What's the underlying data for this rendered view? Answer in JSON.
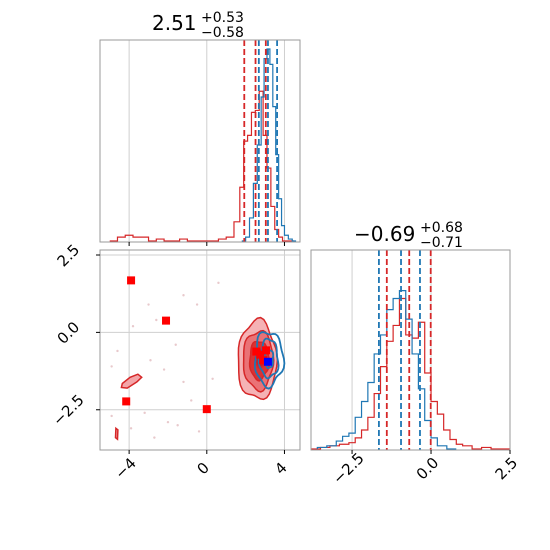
{
  "colors": {
    "red": "#d62728",
    "red_fill": "#e8666b",
    "red_fill_light": "#f3a5a8",
    "blue": "#1f77b4",
    "grid": "#cfcfcf",
    "marker_red": "#ff0000",
    "marker_blue": "#0000ff"
  },
  "chart_data": [
    {
      "panel": "top-left",
      "type": "histogram",
      "title_value": "2.51",
      "title_sup": "+0.53",
      "title_sub": "−0.58",
      "xlim": [
        -5.5,
        4.8
      ],
      "x_ticks": [
        -4,
        0,
        4
      ],
      "grid": true,
      "quantile_lines": {
        "red": [
          1.93,
          2.51,
          3.04
        ],
        "blue": [
          2.68,
          3.15,
          3.62
        ]
      },
      "series": [
        {
          "color": "red",
          "bin_edges": [
            -5.0,
            -4.6,
            -4.2,
            -3.8,
            -3.4,
            -3.0,
            -2.6,
            -2.2,
            -1.8,
            -1.4,
            -1.0,
            -0.6,
            -0.2,
            0.2,
            0.6,
            1.0,
            1.4,
            1.7,
            1.9,
            2.1,
            2.3,
            2.5,
            2.7,
            2.9,
            3.1,
            3.3,
            3.5,
            3.7,
            3.9,
            4.1,
            4.3,
            4.5
          ],
          "values": [
            0.0,
            0.02,
            0.03,
            0.02,
            0.02,
            0.0,
            0.01,
            0.0,
            0.0,
            0.01,
            0.0,
            0.0,
            0.0,
            0.0,
            0.01,
            0.02,
            0.1,
            0.28,
            0.52,
            0.55,
            0.67,
            0.68,
            0.78,
            0.55,
            0.38,
            0.18,
            0.06,
            0.02,
            0.0,
            0.0,
            0.0
          ]
        },
        {
          "color": "blue",
          "bin_edges": [
            1.8,
            2.0,
            2.2,
            2.4,
            2.6,
            2.8,
            2.95,
            3.1,
            3.25,
            3.4,
            3.55,
            3.7,
            3.85,
            4.0,
            4.2,
            4.4,
            4.6
          ],
          "values": [
            0.0,
            0.02,
            0.12,
            0.3,
            0.5,
            0.75,
            0.95,
            1.0,
            0.92,
            0.7,
            0.45,
            0.22,
            0.08,
            0.03,
            0.01,
            0.0
          ]
        }
      ]
    },
    {
      "panel": "bottom-left",
      "type": "contour",
      "xlim": [
        -5.5,
        4.8
      ],
      "ylim": [
        -3.8,
        2.5
      ],
      "x_ticks": [
        "−4",
        "0",
        "4"
      ],
      "y_ticks": [
        "2.5",
        "0.0",
        "−2.5"
      ],
      "x_tick_values": [
        -4,
        0,
        4
      ],
      "y_tick_values": [
        2.5,
        0.0,
        -2.5
      ],
      "grid": true,
      "red_markers": [
        {
          "x": -3.9,
          "y": 1.68
        },
        {
          "x": -2.1,
          "y": 0.38
        },
        {
          "x": -4.15,
          "y": -2.23
        },
        {
          "x": 0.0,
          "y": -2.48
        },
        {
          "x": 2.55,
          "y": -0.62
        },
        {
          "x": 2.75,
          "y": -0.72
        },
        {
          "x": 3.05,
          "y": -0.58
        },
        {
          "x": 2.9,
          "y": -0.9
        }
      ],
      "blue_markers": [
        {
          "x": 3.15,
          "y": -0.95
        }
      ],
      "red_outliers": [
        {
          "points": [
            [
              -4.35,
              -1.65
            ],
            [
              -3.95,
              -1.45
            ],
            [
              -3.55,
              -1.35
            ],
            [
              -3.35,
              -1.45
            ],
            [
              -3.6,
              -1.6
            ],
            [
              -4.1,
              -1.8
            ],
            [
              -4.4,
              -1.78
            ]
          ]
        },
        {
          "points": [
            [
              -4.68,
              -3.1
            ],
            [
              -4.58,
              -3.15
            ],
            [
              -4.6,
              -3.45
            ],
            [
              -4.7,
              -3.4
            ]
          ]
        }
      ],
      "scatter_faint": [
        [
          -3.0,
          0.9
        ],
        [
          -2.6,
          0.4
        ],
        [
          -3.8,
          0.2
        ],
        [
          -1.6,
          -0.4
        ],
        [
          -2.9,
          -0.9
        ],
        [
          -4.6,
          -0.6
        ],
        [
          -4.9,
          -1.1
        ],
        [
          -2.2,
          -1.2
        ],
        [
          -1.2,
          -1.6
        ],
        [
          -3.2,
          -2.6
        ],
        [
          -2.0,
          -2.9
        ],
        [
          -0.8,
          -2.2
        ],
        [
          -4.9,
          -2.7
        ],
        [
          -3.9,
          -3.1
        ],
        [
          -2.7,
          -3.4
        ],
        [
          -1.5,
          -3.0
        ],
        [
          -1.2,
          1.2
        ],
        [
          0.6,
          1.6
        ],
        [
          -0.5,
          0.9
        ],
        [
          0.3,
          -1.5
        ],
        [
          -0.4,
          -3.2
        ]
      ],
      "contours": {
        "red_levels": [
          {
            "cx": 2.6,
            "cy": -0.9,
            "rx": 2.0,
            "ry": 2.55,
            "fill": "light"
          },
          {
            "cx": 2.65,
            "cy": -0.9,
            "rx": 1.55,
            "ry": 1.9,
            "fill": "mid"
          },
          {
            "cx": 2.7,
            "cy": -0.9,
            "rx": 1.0,
            "ry": 1.25,
            "fill": "dark"
          },
          {
            "cx": 2.75,
            "cy": -0.85,
            "rx": 0.5,
            "ry": 0.6,
            "fill": "darker"
          }
        ],
        "blue_levels": [
          {
            "cx": 3.2,
            "cy": -0.85,
            "rx": 1.45,
            "ry": 1.75
          },
          {
            "cx": 3.2,
            "cy": -0.85,
            "rx": 0.95,
            "ry": 1.25
          },
          {
            "cx": 3.2,
            "cy": -0.85,
            "rx": 0.45,
            "ry": 0.6
          }
        ]
      }
    },
    {
      "panel": "bottom-right",
      "type": "histogram",
      "title_value": "−0.69",
      "title_sup": "+0.68",
      "title_sub": "−0.71",
      "xlim": [
        -3.8,
        2.5
      ],
      "x_ticks": [
        "−2.5",
        "0.0",
        "2.5"
      ],
      "x_tick_values": [
        -2.5,
        0.0,
        2.5
      ],
      "grid": true,
      "quantile_lines": {
        "red": [
          -1.4,
          -0.69,
          -0.01
        ],
        "blue": [
          -1.65,
          -0.95,
          -0.35
        ]
      },
      "series": [
        {
          "color": "red",
          "bin_edges": [
            -3.8,
            -3.5,
            -3.2,
            -2.9,
            -2.6,
            -2.4,
            -2.2,
            -2.0,
            -1.8,
            -1.6,
            -1.4,
            -1.2,
            -1.0,
            -0.8,
            -0.6,
            -0.4,
            -0.2,
            0.0,
            0.2,
            0.4,
            0.6,
            0.8,
            1.0,
            1.3,
            1.6,
            1.9,
            2.2,
            2.5
          ],
          "values": [
            0.0,
            0.01,
            0.02,
            0.03,
            0.04,
            0.07,
            0.12,
            0.2,
            0.35,
            0.52,
            0.68,
            0.78,
            0.95,
            0.72,
            0.7,
            0.8,
            0.48,
            0.3,
            0.22,
            0.12,
            0.06,
            0.03,
            0.02,
            0.0,
            0.01,
            0.0,
            0.0
          ]
        },
        {
          "color": "blue",
          "bin_edges": [
            -3.6,
            -3.3,
            -3.0,
            -2.8,
            -2.6,
            -2.4,
            -2.2,
            -2.0,
            -1.8,
            -1.6,
            -1.4,
            -1.2,
            -1.0,
            -0.8,
            -0.6,
            -0.4,
            -0.2,
            0.0,
            0.2,
            0.5,
            0.8
          ],
          "values": [
            0.01,
            0.02,
            0.05,
            0.08,
            0.1,
            0.2,
            0.3,
            0.42,
            0.6,
            0.72,
            0.88,
            0.95,
            1.0,
            0.82,
            0.6,
            0.38,
            0.18,
            0.07,
            0.02,
            0.0
          ]
        }
      ]
    }
  ]
}
